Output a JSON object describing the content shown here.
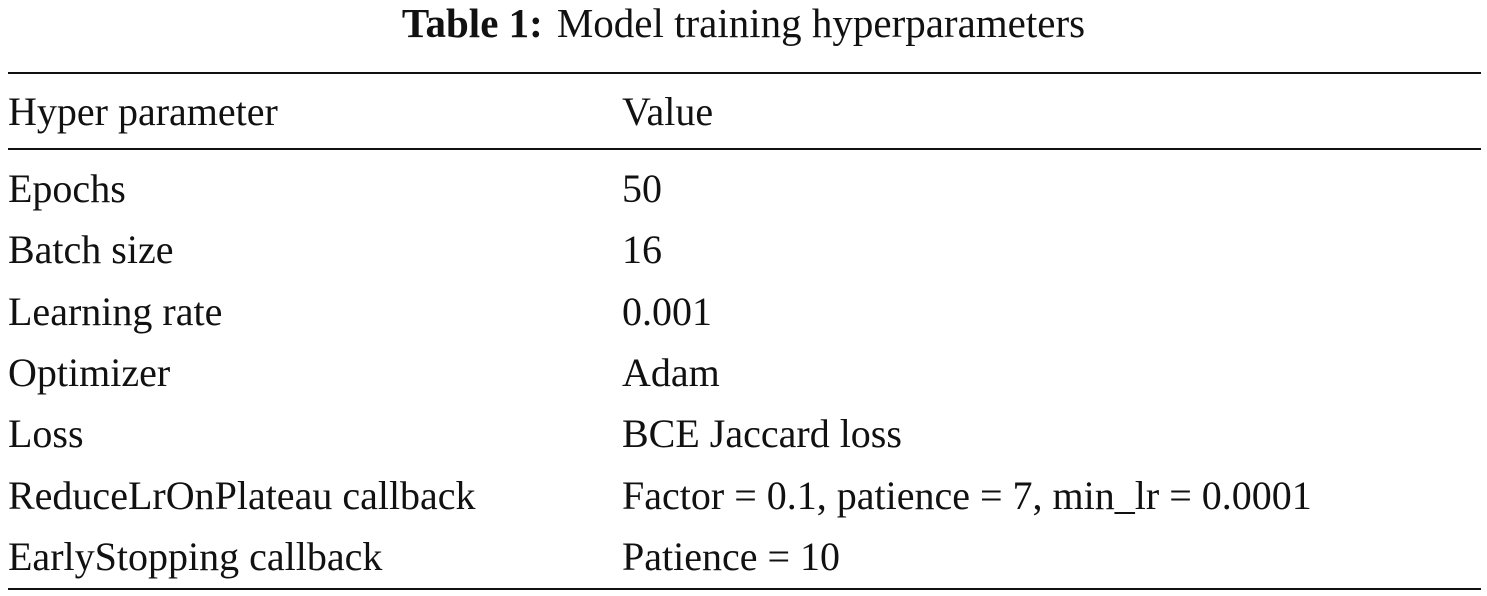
{
  "caption": {
    "label": "Table 1:",
    "title": "Model training hyperparameters"
  },
  "table": {
    "header": [
      "Hyper parameter",
      "Value"
    ],
    "rows": [
      [
        "Epochs",
        "50"
      ],
      [
        "Batch size",
        "16"
      ],
      [
        "Learning rate",
        "0.001"
      ],
      [
        "Optimizer",
        "Adam"
      ],
      [
        "Loss",
        "BCE Jaccard loss"
      ],
      [
        "ReduceLrOnPlateau callback",
        "Factor = 0.1, patience = 7, min_lr = 0.0001"
      ],
      [
        "EarlyStopping callback",
        "Patience = 10"
      ]
    ]
  }
}
